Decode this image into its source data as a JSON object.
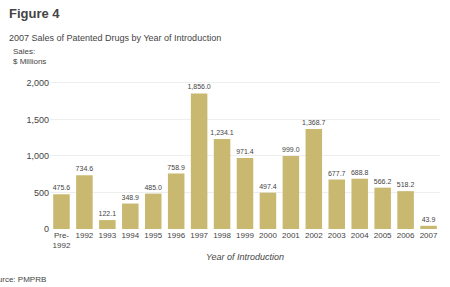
{
  "chart_data": {
    "type": "bar",
    "title": "Figure 4",
    "subtitle": "2007 Sales of Patented Drugs by Year of Introduction",
    "ylabel": "Sales:\n$ Millions",
    "xlabel": "Year of Introduction",
    "annotations": [
      "Source: PMPRB"
    ],
    "categories": [
      "Pre-\n1992",
      "1992",
      "1993",
      "1994",
      "1995",
      "1996",
      "1997",
      "1998",
      "1999",
      "2000",
      "2001",
      "2002",
      "2003",
      "2004",
      "2005",
      "2006",
      "2007"
    ],
    "values": [
      475.6,
      734.6,
      122.1,
      348.9,
      485.0,
      758.9,
      1856.0,
      1234.1,
      971.4,
      497.4,
      999.0,
      1368.7,
      677.7,
      688.8,
      566.2,
      518.2,
      43.9
    ],
    "value_labels": [
      "475.6",
      "734.6",
      "122.1",
      "348.9",
      "485.0",
      "758.9",
      "1,856.0",
      "1,234.1",
      "971.4",
      "497.4",
      "999.0",
      "1,368.7",
      "677.7",
      "688.8",
      "566.2",
      "518.2",
      "43.9"
    ],
    "data_labels": true,
    "color": "#c8b870",
    "ylim": [
      0,
      2150
    ],
    "yticks": [
      0,
      500,
      {
        "value": 1000,
        "label": "1,000"
      },
      {
        "value": 1500,
        "label": "1,500"
      },
      {
        "value": 2000,
        "label": "2,000"
      }
    ],
    "grid": true
  }
}
